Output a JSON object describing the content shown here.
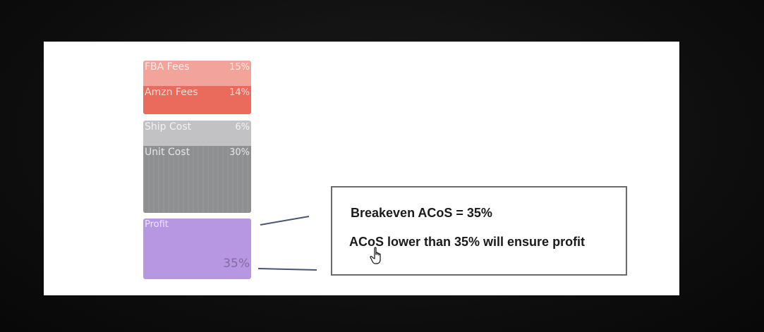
{
  "blocks": {
    "fba_fees": {
      "label": "FBA Fees",
      "percent": "15%",
      "color": "#f2a49a"
    },
    "amzn_fees": {
      "label": "Amzn Fees",
      "percent": "14%",
      "color": "#ea6a5c"
    },
    "ship_cost": {
      "label": "Ship Cost",
      "percent": "6%",
      "color": "#c2c2c4"
    },
    "unit_cost": {
      "label": "Unit Cost",
      "percent": "30%",
      "color": "#8e8f91"
    },
    "profit": {
      "label": "Profit",
      "percent": "35%",
      "color": "#b797e2"
    }
  },
  "callout": {
    "heading": "Breakeven ACoS = 35%",
    "body": "ACoS lower than 35% will ensure profit"
  },
  "icons": {
    "cursor": "hand-pointer-icon"
  }
}
